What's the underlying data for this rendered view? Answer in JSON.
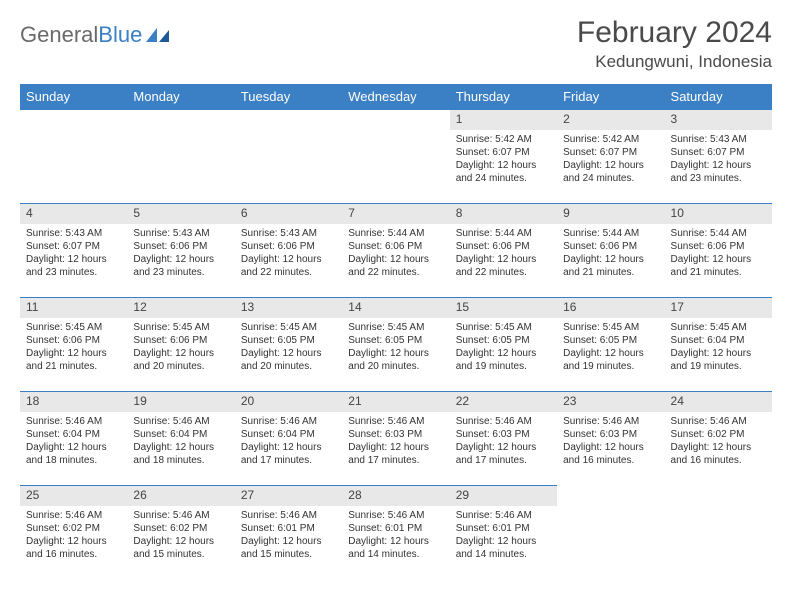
{
  "logo": {
    "text1": "General",
    "text2": "Blue"
  },
  "title": "February 2024",
  "location": "Kedungwuni, Indonesia",
  "weekdays": [
    "Sunday",
    "Monday",
    "Tuesday",
    "Wednesday",
    "Thursday",
    "Friday",
    "Saturday"
  ],
  "colors": {
    "header_bg": "#3b7fc4",
    "header_text": "#ffffff",
    "daynum_bg": "#e8e8e8",
    "border": "#3b7fc4",
    "logo_gray": "#6a6a6a",
    "logo_blue": "#3b7fc4"
  },
  "weeks": [
    [
      null,
      null,
      null,
      null,
      {
        "n": "1",
        "sr": "Sunrise: 5:42 AM",
        "ss": "Sunset: 6:07 PM",
        "dl": "Daylight: 12 hours and 24 minutes."
      },
      {
        "n": "2",
        "sr": "Sunrise: 5:42 AM",
        "ss": "Sunset: 6:07 PM",
        "dl": "Daylight: 12 hours and 24 minutes."
      },
      {
        "n": "3",
        "sr": "Sunrise: 5:43 AM",
        "ss": "Sunset: 6:07 PM",
        "dl": "Daylight: 12 hours and 23 minutes."
      }
    ],
    [
      {
        "n": "4",
        "sr": "Sunrise: 5:43 AM",
        "ss": "Sunset: 6:07 PM",
        "dl": "Daylight: 12 hours and 23 minutes."
      },
      {
        "n": "5",
        "sr": "Sunrise: 5:43 AM",
        "ss": "Sunset: 6:06 PM",
        "dl": "Daylight: 12 hours and 23 minutes."
      },
      {
        "n": "6",
        "sr": "Sunrise: 5:43 AM",
        "ss": "Sunset: 6:06 PM",
        "dl": "Daylight: 12 hours and 22 minutes."
      },
      {
        "n": "7",
        "sr": "Sunrise: 5:44 AM",
        "ss": "Sunset: 6:06 PM",
        "dl": "Daylight: 12 hours and 22 minutes."
      },
      {
        "n": "8",
        "sr": "Sunrise: 5:44 AM",
        "ss": "Sunset: 6:06 PM",
        "dl": "Daylight: 12 hours and 22 minutes."
      },
      {
        "n": "9",
        "sr": "Sunrise: 5:44 AM",
        "ss": "Sunset: 6:06 PM",
        "dl": "Daylight: 12 hours and 21 minutes."
      },
      {
        "n": "10",
        "sr": "Sunrise: 5:44 AM",
        "ss": "Sunset: 6:06 PM",
        "dl": "Daylight: 12 hours and 21 minutes."
      }
    ],
    [
      {
        "n": "11",
        "sr": "Sunrise: 5:45 AM",
        "ss": "Sunset: 6:06 PM",
        "dl": "Daylight: 12 hours and 21 minutes."
      },
      {
        "n": "12",
        "sr": "Sunrise: 5:45 AM",
        "ss": "Sunset: 6:06 PM",
        "dl": "Daylight: 12 hours and 20 minutes."
      },
      {
        "n": "13",
        "sr": "Sunrise: 5:45 AM",
        "ss": "Sunset: 6:05 PM",
        "dl": "Daylight: 12 hours and 20 minutes."
      },
      {
        "n": "14",
        "sr": "Sunrise: 5:45 AM",
        "ss": "Sunset: 6:05 PM",
        "dl": "Daylight: 12 hours and 20 minutes."
      },
      {
        "n": "15",
        "sr": "Sunrise: 5:45 AM",
        "ss": "Sunset: 6:05 PM",
        "dl": "Daylight: 12 hours and 19 minutes."
      },
      {
        "n": "16",
        "sr": "Sunrise: 5:45 AM",
        "ss": "Sunset: 6:05 PM",
        "dl": "Daylight: 12 hours and 19 minutes."
      },
      {
        "n": "17",
        "sr": "Sunrise: 5:45 AM",
        "ss": "Sunset: 6:04 PM",
        "dl": "Daylight: 12 hours and 19 minutes."
      }
    ],
    [
      {
        "n": "18",
        "sr": "Sunrise: 5:46 AM",
        "ss": "Sunset: 6:04 PM",
        "dl": "Daylight: 12 hours and 18 minutes."
      },
      {
        "n": "19",
        "sr": "Sunrise: 5:46 AM",
        "ss": "Sunset: 6:04 PM",
        "dl": "Daylight: 12 hours and 18 minutes."
      },
      {
        "n": "20",
        "sr": "Sunrise: 5:46 AM",
        "ss": "Sunset: 6:04 PM",
        "dl": "Daylight: 12 hours and 17 minutes."
      },
      {
        "n": "21",
        "sr": "Sunrise: 5:46 AM",
        "ss": "Sunset: 6:03 PM",
        "dl": "Daylight: 12 hours and 17 minutes."
      },
      {
        "n": "22",
        "sr": "Sunrise: 5:46 AM",
        "ss": "Sunset: 6:03 PM",
        "dl": "Daylight: 12 hours and 17 minutes."
      },
      {
        "n": "23",
        "sr": "Sunrise: 5:46 AM",
        "ss": "Sunset: 6:03 PM",
        "dl": "Daylight: 12 hours and 16 minutes."
      },
      {
        "n": "24",
        "sr": "Sunrise: 5:46 AM",
        "ss": "Sunset: 6:02 PM",
        "dl": "Daylight: 12 hours and 16 minutes."
      }
    ],
    [
      {
        "n": "25",
        "sr": "Sunrise: 5:46 AM",
        "ss": "Sunset: 6:02 PM",
        "dl": "Daylight: 12 hours and 16 minutes."
      },
      {
        "n": "26",
        "sr": "Sunrise: 5:46 AM",
        "ss": "Sunset: 6:02 PM",
        "dl": "Daylight: 12 hours and 15 minutes."
      },
      {
        "n": "27",
        "sr": "Sunrise: 5:46 AM",
        "ss": "Sunset: 6:01 PM",
        "dl": "Daylight: 12 hours and 15 minutes."
      },
      {
        "n": "28",
        "sr": "Sunrise: 5:46 AM",
        "ss": "Sunset: 6:01 PM",
        "dl": "Daylight: 12 hours and 14 minutes."
      },
      {
        "n": "29",
        "sr": "Sunrise: 5:46 AM",
        "ss": "Sunset: 6:01 PM",
        "dl": "Daylight: 12 hours and 14 minutes."
      },
      null,
      null
    ]
  ]
}
